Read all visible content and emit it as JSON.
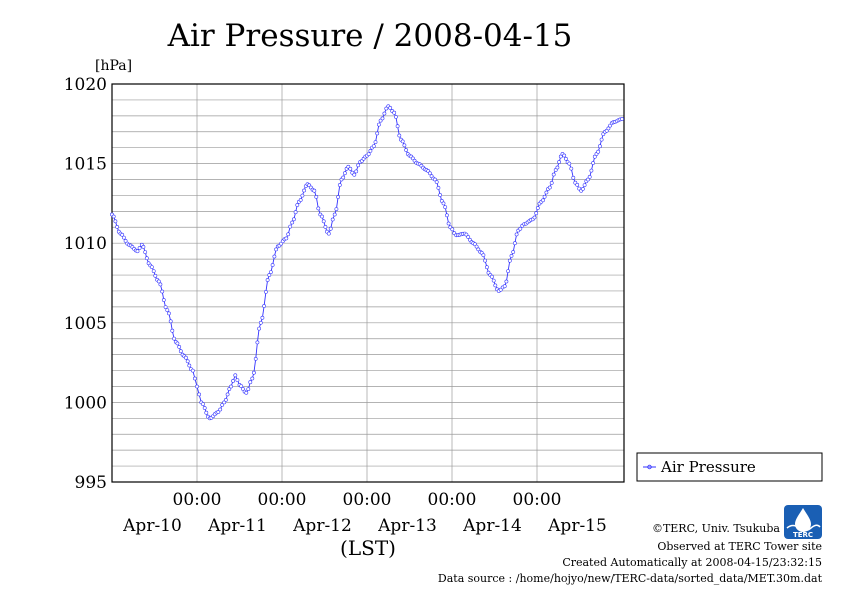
{
  "chart_data": {
    "type": "line",
    "title": "Air Pressure / 2008-04-15",
    "ylabel": "[hPa]",
    "xlabel": "(LST)",
    "ylim": [
      995,
      1020
    ],
    "yticks": [
      995,
      1000,
      1005,
      1010,
      1015,
      1020
    ],
    "xlim": [
      0,
      6
    ],
    "midnight_labels": [
      "00:00",
      "00:00",
      "00:00",
      "00:00",
      "00:00"
    ],
    "day_labels": [
      "Apr-10",
      "Apr-11",
      "Apr-12",
      "Apr-13",
      "Apr-14",
      "Apr-15"
    ],
    "grid": true,
    "legend_position": "right",
    "series": [
      {
        "name": "Air Pressure",
        "color": "#3333ff",
        "x_unit": "days from 2008-04-10 00:00",
        "points": [
          [
            0.0,
            1011.8
          ],
          [
            0.1,
            1010.6
          ],
          [
            0.2,
            1009.9
          ],
          [
            0.3,
            1009.5
          ],
          [
            0.35,
            1009.9
          ],
          [
            0.45,
            1008.6
          ],
          [
            0.55,
            1007.6
          ],
          [
            0.65,
            1005.8
          ],
          [
            0.75,
            1003.8
          ],
          [
            0.85,
            1002.9
          ],
          [
            0.95,
            1002.0
          ],
          [
            1.0,
            1001.0
          ],
          [
            1.05,
            1000.0
          ],
          [
            1.15,
            999.0
          ],
          [
            1.25,
            999.4
          ],
          [
            1.32,
            1000.0
          ],
          [
            1.4,
            1001.0
          ],
          [
            1.45,
            1001.7
          ],
          [
            1.5,
            1001.1
          ],
          [
            1.58,
            1000.6
          ],
          [
            1.65,
            1001.5
          ],
          [
            1.75,
            1005.0
          ],
          [
            1.85,
            1008.0
          ],
          [
            1.95,
            1009.8
          ],
          [
            2.05,
            1010.3
          ],
          [
            2.12,
            1011.3
          ],
          [
            2.2,
            1012.6
          ],
          [
            2.3,
            1013.7
          ],
          [
            2.38,
            1013.3
          ],
          [
            2.45,
            1011.8
          ],
          [
            2.55,
            1010.6
          ],
          [
            2.62,
            1011.8
          ],
          [
            2.7,
            1014.0
          ],
          [
            2.78,
            1014.8
          ],
          [
            2.85,
            1014.3
          ],
          [
            2.92,
            1015.1
          ],
          [
            3.0,
            1015.5
          ],
          [
            3.08,
            1016.1
          ],
          [
            3.16,
            1017.7
          ],
          [
            3.25,
            1018.6
          ],
          [
            3.32,
            1018.2
          ],
          [
            3.4,
            1016.5
          ],
          [
            3.5,
            1015.5
          ],
          [
            3.6,
            1015.0
          ],
          [
            3.7,
            1014.6
          ],
          [
            3.8,
            1014.0
          ],
          [
            3.9,
            1012.5
          ],
          [
            3.98,
            1011.0
          ],
          [
            4.05,
            1010.5
          ],
          [
            4.15,
            1010.6
          ],
          [
            4.25,
            1010.0
          ],
          [
            4.35,
            1009.4
          ],
          [
            4.45,
            1008.0
          ],
          [
            4.55,
            1007.0
          ],
          [
            4.62,
            1007.3
          ],
          [
            4.7,
            1009.2
          ],
          [
            4.78,
            1010.8
          ],
          [
            4.85,
            1011.2
          ],
          [
            4.95,
            1011.5
          ],
          [
            5.05,
            1012.6
          ],
          [
            5.15,
            1013.5
          ],
          [
            5.22,
            1014.6
          ],
          [
            5.3,
            1015.6
          ],
          [
            5.38,
            1015.0
          ],
          [
            5.45,
            1013.8
          ],
          [
            5.52,
            1013.3
          ],
          [
            5.6,
            1014.0
          ],
          [
            5.7,
            1015.6
          ],
          [
            5.8,
            1017.0
          ],
          [
            5.9,
            1017.6
          ],
          [
            6.0,
            1017.8
          ]
        ]
      }
    ]
  },
  "credits": {
    "copyright": "©TERC, Univ. Tsukuba",
    "observed": "Observed at TERC Tower site",
    "created": "Created Automatically at 2008-04-15/23:32:15",
    "source": "Data source : /home/hojyo/new/TERC-data/sorted_data/MET.30m.dat"
  },
  "logo": {
    "text": "TERC",
    "color": "#1a5fb4"
  }
}
